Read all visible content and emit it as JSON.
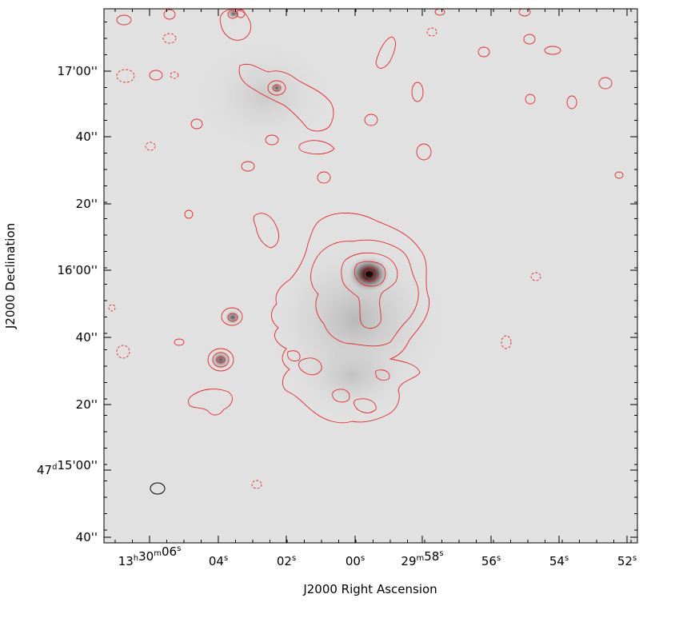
{
  "chart_data": {
    "type": "heatmap",
    "title": "",
    "xlabel": "J2000 Right Ascension",
    "ylabel": "J2000 Declination",
    "x_ticks": [
      {
        "label": "13h30m06s",
        "parts": [
          [
            "13",
            "h"
          ],
          [
            "30",
            "m"
          ],
          [
            "06",
            "s"
          ]
        ]
      },
      {
        "label": "04s",
        "parts": [
          [
            "04",
            "s"
          ]
        ]
      },
      {
        "label": "02s",
        "parts": [
          [
            "02",
            "s"
          ]
        ]
      },
      {
        "label": "00s",
        "parts": [
          [
            "00",
            "s"
          ]
        ]
      },
      {
        "label": "29m58s",
        "parts": [
          [
            "29",
            "m"
          ],
          [
            "58",
            "s"
          ]
        ]
      },
      {
        "label": "56s",
        "parts": [
          [
            "56",
            "s"
          ]
        ]
      },
      {
        "label": "54s",
        "parts": [
          [
            "54",
            "s"
          ]
        ]
      },
      {
        "label": "52s",
        "parts": [
          [
            "52",
            "s"
          ]
        ]
      }
    ],
    "y_ticks": [
      {
        "label": "17'00''",
        "parts": [
          [
            "17'00''",
            ""
          ]
        ]
      },
      {
        "label": "40''",
        "parts": [
          [
            "40''",
            ""
          ]
        ]
      },
      {
        "label": "20''",
        "parts": [
          [
            "20''",
            ""
          ]
        ]
      },
      {
        "label": "16'00''",
        "parts": [
          [
            "16'00''",
            ""
          ]
        ]
      },
      {
        "label": "40''",
        "parts": [
          [
            "40''",
            ""
          ]
        ]
      },
      {
        "label": "20''",
        "parts": [
          [
            "20''",
            ""
          ]
        ]
      },
      {
        "label": "47d15'00''",
        "parts": [
          [
            "47",
            "d"
          ],
          [
            "15'00''",
            ""
          ]
        ]
      },
      {
        "label": "40''",
        "parts": [
          [
            "40''",
            ""
          ]
        ]
      }
    ],
    "colors": {
      "contour": "#e8262a",
      "background": "#e1e1e1",
      "core": "#000000"
    }
  }
}
